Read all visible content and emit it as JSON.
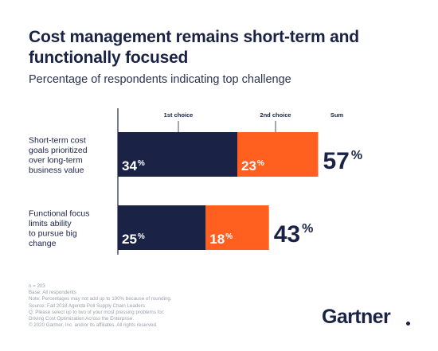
{
  "title": "Cost management remains short-term and functionally focused",
  "subtitle": "Percentage of respondents indicating top challenge",
  "chart_data": {
    "type": "bar",
    "stacked": true,
    "orientation": "horizontal",
    "categories": [
      "Short-term cost goals prioritized over long-term business value",
      "Functional focus limits ability to pursue big change"
    ],
    "category_lines": [
      [
        "Short-term cost",
        "goals prioritized",
        "over long-term",
        "business value"
      ],
      [
        "Functional focus",
        "limits ability",
        "to pursue big",
        "change"
      ]
    ],
    "series": [
      {
        "name": "1st choice",
        "values": [
          34,
          25
        ],
        "color": "#1a2346"
      },
      {
        "name": "2nd choice",
        "values": [
          23,
          18
        ],
        "color": "#ff5f1f"
      }
    ],
    "sum_label": "Sum",
    "sums": [
      57,
      43
    ],
    "unit": "%",
    "xlim": [
      0,
      60
    ],
    "legend_placement": "top",
    "grid": false
  },
  "footnotes": [
    "n = 203",
    "Base: All respondents",
    "Note: Percentages may not add up to 100% because of rounding.",
    "Source: Fall 2018 Agenda Poll Supply Chain Leaders",
    "Q: Please select up to two of your most pressing problems for:",
    "Driving Cost Optimization Across the Enterprise.",
    "© 2020 Gartner, Inc. and/or its affiliates. All rights reserved."
  ],
  "brand": "Gartner"
}
